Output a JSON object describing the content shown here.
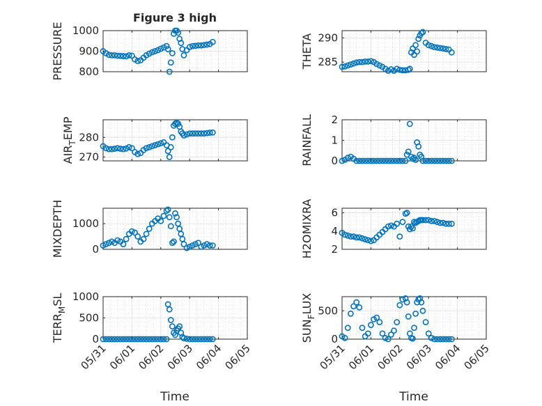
{
  "title": "Figure 3 high",
  "xlabel": "Time",
  "marker_color": "#0072BD",
  "x_ticks": [
    "05/31",
    "06/01",
    "06/02",
    "06/03",
    "06/04",
    "06/05"
  ],
  "chart_data": [
    {
      "type": "scatter",
      "ylabel": "PRESSURE",
      "ylim": [
        800,
        1000
      ],
      "yticks": [
        "800",
        "900",
        "1000"
      ],
      "grid": true,
      "x": [
        0.0,
        0.1,
        0.2,
        0.3,
        0.4,
        0.5,
        0.6,
        0.7,
        0.8,
        0.9,
        1.0,
        1.1,
        1.2,
        1.3,
        1.4,
        1.5,
        1.6,
        1.7,
        1.8,
        1.9,
        2.0,
        2.1,
        2.2,
        2.25,
        2.3,
        2.35,
        2.4,
        2.45,
        2.5,
        2.55,
        2.6,
        2.65,
        2.7,
        2.75,
        2.8,
        2.9,
        3.0,
        3.1,
        3.2,
        3.3,
        3.4,
        3.5,
        3.6,
        3.7,
        3.8
      ],
      "y": [
        900,
        890,
        882,
        880,
        880,
        878,
        877,
        876,
        875,
        880,
        878,
        860,
        852,
        856,
        868,
        880,
        888,
        895,
        900,
        905,
        912,
        918,
        925,
        910,
        800,
        845,
        890,
        985,
        1000,
        1000,
        990,
        960,
        940,
        910,
        880,
        905,
        920,
        925,
        926,
        928,
        928,
        930,
        932,
        935,
        945
      ]
    },
    {
      "type": "scatter",
      "ylabel": "THETA",
      "ylim": [
        283,
        291.5
      ],
      "yticks": [
        "285",
        "290"
      ],
      "grid": true,
      "x": [
        0.0,
        0.1,
        0.2,
        0.3,
        0.4,
        0.5,
        0.6,
        0.7,
        0.8,
        0.9,
        1.0,
        1.1,
        1.2,
        1.3,
        1.4,
        1.5,
        1.6,
        1.7,
        1.8,
        1.9,
        2.0,
        2.1,
        2.2,
        2.3,
        2.35,
        2.4,
        2.45,
        2.5,
        2.55,
        2.6,
        2.65,
        2.7,
        2.75,
        2.8,
        2.9,
        3.0,
        3.1,
        3.2,
        3.3,
        3.4,
        3.5,
        3.6,
        3.7,
        3.8
      ],
      "y": [
        284,
        284.1,
        284.3,
        284.5,
        284.7,
        284.9,
        285,
        285,
        285.1,
        285.1,
        285.2,
        285,
        284.6,
        284.3,
        284,
        283.6,
        283.2,
        283.5,
        283.2,
        283.6,
        283.4,
        283.3,
        283.3,
        283.4,
        283.6,
        287,
        287.8,
        286.5,
        288.5,
        287.2,
        289.8,
        290.5,
        291,
        291.2,
        289,
        288.5,
        288.3,
        288.1,
        288,
        287.9,
        287.8,
        287.7,
        287.6,
        287
      ]
    },
    {
      "type": "scatter",
      "ylabel_main": "AIR",
      "ylabel_sub": "T",
      "ylabel_rest": "EMP",
      "ylim": [
        268,
        289
      ],
      "yticks": [
        "270",
        "280"
      ],
      "grid": true,
      "x": [
        0.0,
        0.1,
        0.2,
        0.3,
        0.4,
        0.5,
        0.6,
        0.7,
        0.8,
        0.9,
        1.0,
        1.1,
        1.2,
        1.3,
        1.4,
        1.5,
        1.6,
        1.7,
        1.8,
        1.9,
        2.0,
        2.1,
        2.2,
        2.25,
        2.3,
        2.35,
        2.4,
        2.45,
        2.5,
        2.55,
        2.6,
        2.65,
        2.7,
        2.75,
        2.8,
        2.9,
        3.0,
        3.1,
        3.2,
        3.3,
        3.4,
        3.5,
        3.6,
        3.7,
        3.8
      ],
      "y": [
        275.5,
        274.5,
        274,
        274,
        274.2,
        274.5,
        274.2,
        274,
        274.3,
        275,
        274.5,
        272.5,
        271.5,
        272,
        273.5,
        274.5,
        275,
        275.5,
        276,
        276.5,
        277,
        277.5,
        276,
        273,
        270,
        275,
        280,
        286,
        287,
        287.5,
        287,
        285.5,
        283,
        282,
        281,
        281.5,
        282,
        282,
        282,
        282,
        282,
        282,
        282.2,
        282.4,
        282.5
      ]
    },
    {
      "type": "scatter",
      "ylabel": "RAINFALL",
      "ylim": [
        0,
        2
      ],
      "yticks": [
        "0",
        "1",
        "2"
      ],
      "grid": true,
      "x": [
        0.0,
        0.1,
        0.2,
        0.3,
        0.4,
        0.5,
        0.6,
        0.7,
        0.8,
        0.9,
        1.0,
        1.1,
        1.2,
        1.3,
        1.4,
        1.5,
        1.6,
        1.7,
        1.8,
        1.9,
        2.0,
        2.1,
        2.2,
        2.25,
        2.3,
        2.35,
        2.4,
        2.45,
        2.5,
        2.55,
        2.6,
        2.65,
        2.7,
        2.75,
        2.8,
        2.9,
        3.0,
        3.1,
        3.2,
        3.3,
        3.4,
        3.5,
        3.6,
        3.7,
        3.8
      ],
      "y": [
        0,
        0.05,
        0.15,
        0.2,
        0.1,
        0,
        0,
        0,
        0,
        0,
        0,
        0,
        0,
        0,
        0,
        0,
        0,
        0,
        0,
        0,
        0,
        0,
        0,
        0.3,
        0.45,
        1.8,
        0.2,
        0.1,
        0.15,
        0.05,
        0.9,
        0.7,
        0.3,
        0.2,
        0,
        0,
        0,
        0,
        0,
        0,
        0,
        0,
        0,
        0,
        0
      ]
    },
    {
      "type": "scatter",
      "ylabel": "MIXDEPTH",
      "ylim": [
        0,
        1600
      ],
      "yticks": [
        "0",
        "1000"
      ],
      "grid": true,
      "x": [
        0.0,
        0.1,
        0.2,
        0.3,
        0.4,
        0.5,
        0.6,
        0.7,
        0.8,
        0.9,
        1.0,
        1.1,
        1.2,
        1.3,
        1.4,
        1.5,
        1.6,
        1.7,
        1.8,
        1.9,
        2.0,
        2.1,
        2.2,
        2.25,
        2.3,
        2.35,
        2.4,
        2.45,
        2.5,
        2.55,
        2.6,
        2.65,
        2.7,
        2.75,
        2.8,
        2.9,
        3.0,
        3.1,
        3.2,
        3.3,
        3.4,
        3.5,
        3.6,
        3.7,
        3.8
      ],
      "y": [
        150,
        200,
        250,
        300,
        250,
        350,
        300,
        200,
        400,
        600,
        700,
        650,
        500,
        300,
        400,
        600,
        800,
        1000,
        1100,
        1200,
        1100,
        1300,
        1500,
        1550,
        1250,
        900,
        250,
        300,
        1400,
        1250,
        1000,
        800,
        600,
        400,
        200,
        50,
        100,
        150,
        200,
        250,
        100,
        150,
        200,
        150,
        150
      ]
    },
    {
      "type": "scatter",
      "ylabel": "H2OMIXRA",
      "ylim": [
        2,
        6.5
      ],
      "yticks": [
        "2",
        "4",
        "6"
      ],
      "grid": true,
      "x": [
        0.0,
        0.1,
        0.2,
        0.3,
        0.4,
        0.5,
        0.6,
        0.7,
        0.8,
        0.9,
        1.0,
        1.1,
        1.2,
        1.3,
        1.4,
        1.5,
        1.6,
        1.7,
        1.8,
        1.9,
        2.0,
        2.1,
        2.2,
        2.25,
        2.3,
        2.35,
        2.4,
        2.45,
        2.5,
        2.55,
        2.6,
        2.65,
        2.7,
        2.75,
        2.8,
        2.9,
        3.0,
        3.1,
        3.2,
        3.3,
        3.4,
        3.5,
        3.6,
        3.7,
        3.8
      ],
      "y": [
        3.8,
        3.6,
        3.5,
        3.4,
        3.4,
        3.3,
        3.3,
        3.2,
        3.1,
        3.0,
        2.9,
        3.0,
        3.3,
        3.6,
        3.9,
        4.2,
        4.5,
        4.6,
        4.5,
        4.8,
        3.4,
        5.0,
        5.9,
        6.0,
        4.5,
        4.2,
        4.5,
        4.3,
        5.0,
        4.9,
        5.0,
        5.1,
        5.2,
        5.2,
        5.2,
        5.2,
        5.2,
        5.1,
        5.1,
        5.0,
        4.9,
        4.9,
        4.8,
        4.8,
        4.8
      ]
    },
    {
      "type": "scatter",
      "ylabel_main": "TERR",
      "ylabel_sub": "M",
      "ylabel_rest": "SL",
      "ylim": [
        0,
        1000
      ],
      "yticks": [
        "0",
        "500",
        "1000"
      ],
      "grid": true,
      "x": [
        0.0,
        0.1,
        0.2,
        0.3,
        0.4,
        0.5,
        0.6,
        0.7,
        0.8,
        0.9,
        1.0,
        1.1,
        1.2,
        1.3,
        1.4,
        1.5,
        1.6,
        1.7,
        1.8,
        1.9,
        2.0,
        2.1,
        2.2,
        2.25,
        2.3,
        2.35,
        2.4,
        2.45,
        2.5,
        2.55,
        2.6,
        2.65,
        2.7,
        2.75,
        2.8,
        2.9,
        3.0,
        3.1,
        3.2,
        3.3,
        3.4,
        3.5,
        3.6,
        3.7,
        3.8
      ],
      "y": [
        0,
        0,
        0,
        0,
        0,
        0,
        0,
        0,
        0,
        0,
        0,
        0,
        0,
        0,
        0,
        0,
        0,
        0,
        0,
        0,
        0,
        0,
        0,
        820,
        700,
        450,
        300,
        150,
        100,
        200,
        250,
        300,
        150,
        50,
        20,
        10,
        0,
        0,
        0,
        0,
        0,
        0,
        0,
        0,
        0
      ]
    },
    {
      "type": "scatter",
      "ylabel_main": "SUN",
      "ylabel_sub": "F",
      "ylabel_rest": "LUX",
      "ylim": [
        0,
        750
      ],
      "yticks": [
        "0",
        "500"
      ],
      "grid": true,
      "x": [
        0.0,
        0.1,
        0.2,
        0.3,
        0.4,
        0.5,
        0.6,
        0.7,
        0.8,
        0.9,
        1.0,
        1.1,
        1.2,
        1.3,
        1.4,
        1.5,
        1.6,
        1.7,
        1.8,
        1.9,
        2.0,
        2.1,
        2.2,
        2.25,
        2.3,
        2.35,
        2.4,
        2.45,
        2.5,
        2.55,
        2.6,
        2.65,
        2.7,
        2.75,
        2.8,
        2.9,
        3.0,
        3.1,
        3.2,
        3.3,
        3.4,
        3.5,
        3.6,
        3.7,
        3.8
      ],
      "y": [
        50,
        20,
        200,
        450,
        580,
        650,
        560,
        200,
        50,
        100,
        250,
        350,
        380,
        300,
        100,
        20,
        0,
        80,
        150,
        300,
        600,
        700,
        720,
        650,
        400,
        100,
        20,
        10,
        200,
        450,
        650,
        700,
        720,
        650,
        500,
        300,
        100,
        20,
        0,
        0,
        0,
        0,
        0,
        0,
        0
      ]
    }
  ]
}
